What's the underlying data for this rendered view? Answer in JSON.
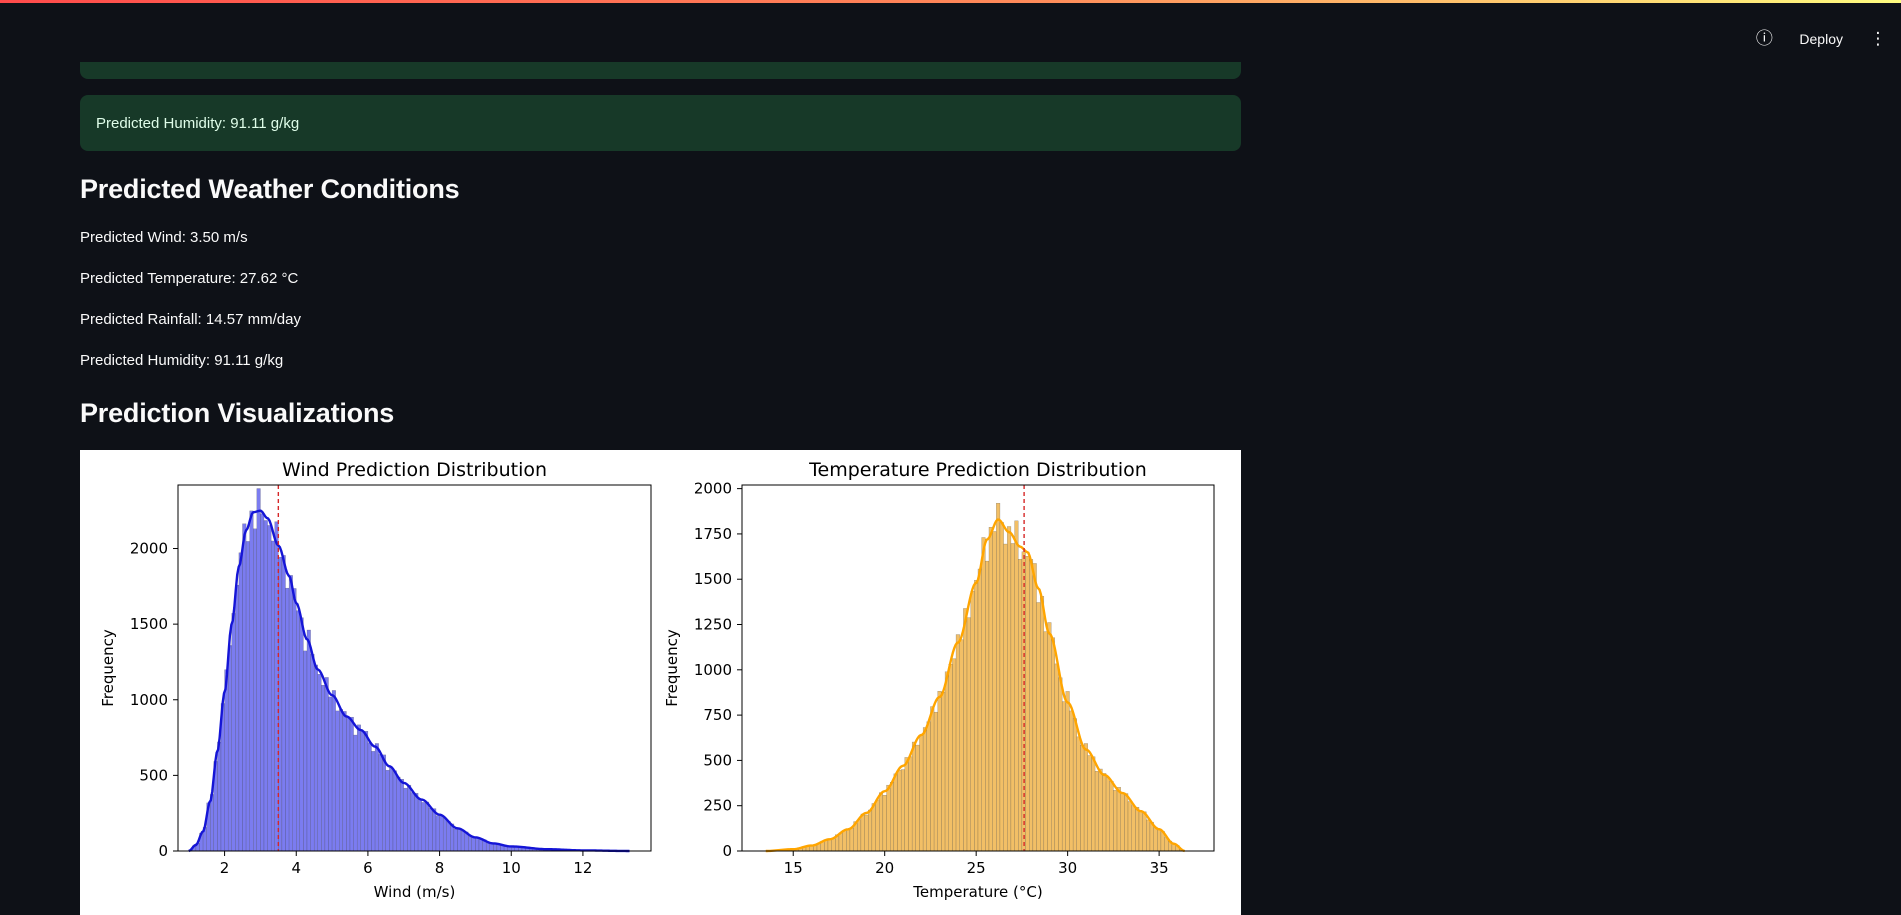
{
  "toolbar": {
    "info_icon": "info-icon",
    "deploy_label": "Deploy",
    "menu_icon": "vertical-ellipsis-icon"
  },
  "alerts": {
    "humidity": "Predicted Humidity: 91.11 g/kg"
  },
  "sections": {
    "conditions_title": "Predicted Weather Conditions",
    "conditions": [
      "Predicted Wind: 3.50 m/s",
      "Predicted Temperature: 27.62 °C",
      "Predicted Rainfall: 14.57 mm/day",
      "Predicted Humidity: 91.11 g/kg"
    ],
    "viz_title": "Prediction Visualizations"
  },
  "colors": {
    "background": "#0e1117",
    "alert_bg": "#173928",
    "alert_text": "#dffde9",
    "wind_bar": "#7b7cf0",
    "wind_kde": "#1515d6",
    "temp_bar": "#f2bf66",
    "temp_kde": "#ffa500",
    "mean_line": "#d62728"
  },
  "chart_data": [
    {
      "type": "bar",
      "title": "Wind Prediction Distribution",
      "xlabel": "Wind (m/s)",
      "ylabel": "Frequency",
      "xlim": [
        0.7,
        13.9
      ],
      "ylim": [
        0,
        2420
      ],
      "xticks": [
        2,
        4,
        6,
        8,
        10,
        12
      ],
      "yticks": [
        0,
        500,
        1000,
        1500,
        2000
      ],
      "mean_line": 3.5,
      "kde": [
        [
          1.0,
          0
        ],
        [
          1.2,
          40
        ],
        [
          1.4,
          130
        ],
        [
          1.6,
          330
        ],
        [
          1.8,
          660
        ],
        [
          2.0,
          1050
        ],
        [
          2.2,
          1500
        ],
        [
          2.4,
          1880
        ],
        [
          2.6,
          2120
        ],
        [
          2.8,
          2240
        ],
        [
          3.0,
          2250
        ],
        [
          3.2,
          2200
        ],
        [
          3.5,
          2020
        ],
        [
          3.8,
          1820
        ],
        [
          4.0,
          1640
        ],
        [
          4.3,
          1400
        ],
        [
          4.6,
          1200
        ],
        [
          5.0,
          1030
        ],
        [
          5.4,
          890
        ],
        [
          5.8,
          800
        ],
        [
          6.2,
          690
        ],
        [
          6.6,
          560
        ],
        [
          7.0,
          450
        ],
        [
          7.5,
          340
        ],
        [
          8.0,
          240
        ],
        [
          8.5,
          150
        ],
        [
          9.0,
          90
        ],
        [
          9.5,
          50
        ],
        [
          10.0,
          30
        ],
        [
          11.0,
          12
        ],
        [
          12.0,
          4
        ],
        [
          13.3,
          0
        ]
      ]
    },
    {
      "type": "bar",
      "title": "Temperature Prediction Distribution",
      "xlabel": "Temperature (°C)",
      "ylabel": "Frequency",
      "xlim": [
        12.2,
        38.0
      ],
      "ylim": [
        0,
        2020
      ],
      "xticks": [
        15,
        20,
        25,
        30,
        35
      ],
      "yticks": [
        0,
        250,
        500,
        750,
        1000,
        1250,
        1500,
        1750,
        2000
      ],
      "mean_line": 27.62,
      "kde": [
        [
          13.5,
          0
        ],
        [
          15.0,
          10
        ],
        [
          16.0,
          30
        ],
        [
          17.0,
          65
        ],
        [
          18.0,
          120
        ],
        [
          19.0,
          210
        ],
        [
          20.0,
          330
        ],
        [
          21.0,
          470
        ],
        [
          22.0,
          640
        ],
        [
          23.0,
          850
        ],
        [
          24.0,
          1150
        ],
        [
          25.0,
          1480
        ],
        [
          25.6,
          1720
        ],
        [
          26.2,
          1830
        ],
        [
          26.8,
          1760
        ],
        [
          27.4,
          1680
        ],
        [
          27.8,
          1650
        ],
        [
          28.4,
          1450
        ],
        [
          29.0,
          1200
        ],
        [
          30.0,
          820
        ],
        [
          31.0,
          560
        ],
        [
          32.0,
          420
        ],
        [
          33.0,
          320
        ],
        [
          34.0,
          220
        ],
        [
          35.0,
          120
        ],
        [
          35.8,
          40
        ],
        [
          36.4,
          0
        ]
      ]
    }
  ]
}
